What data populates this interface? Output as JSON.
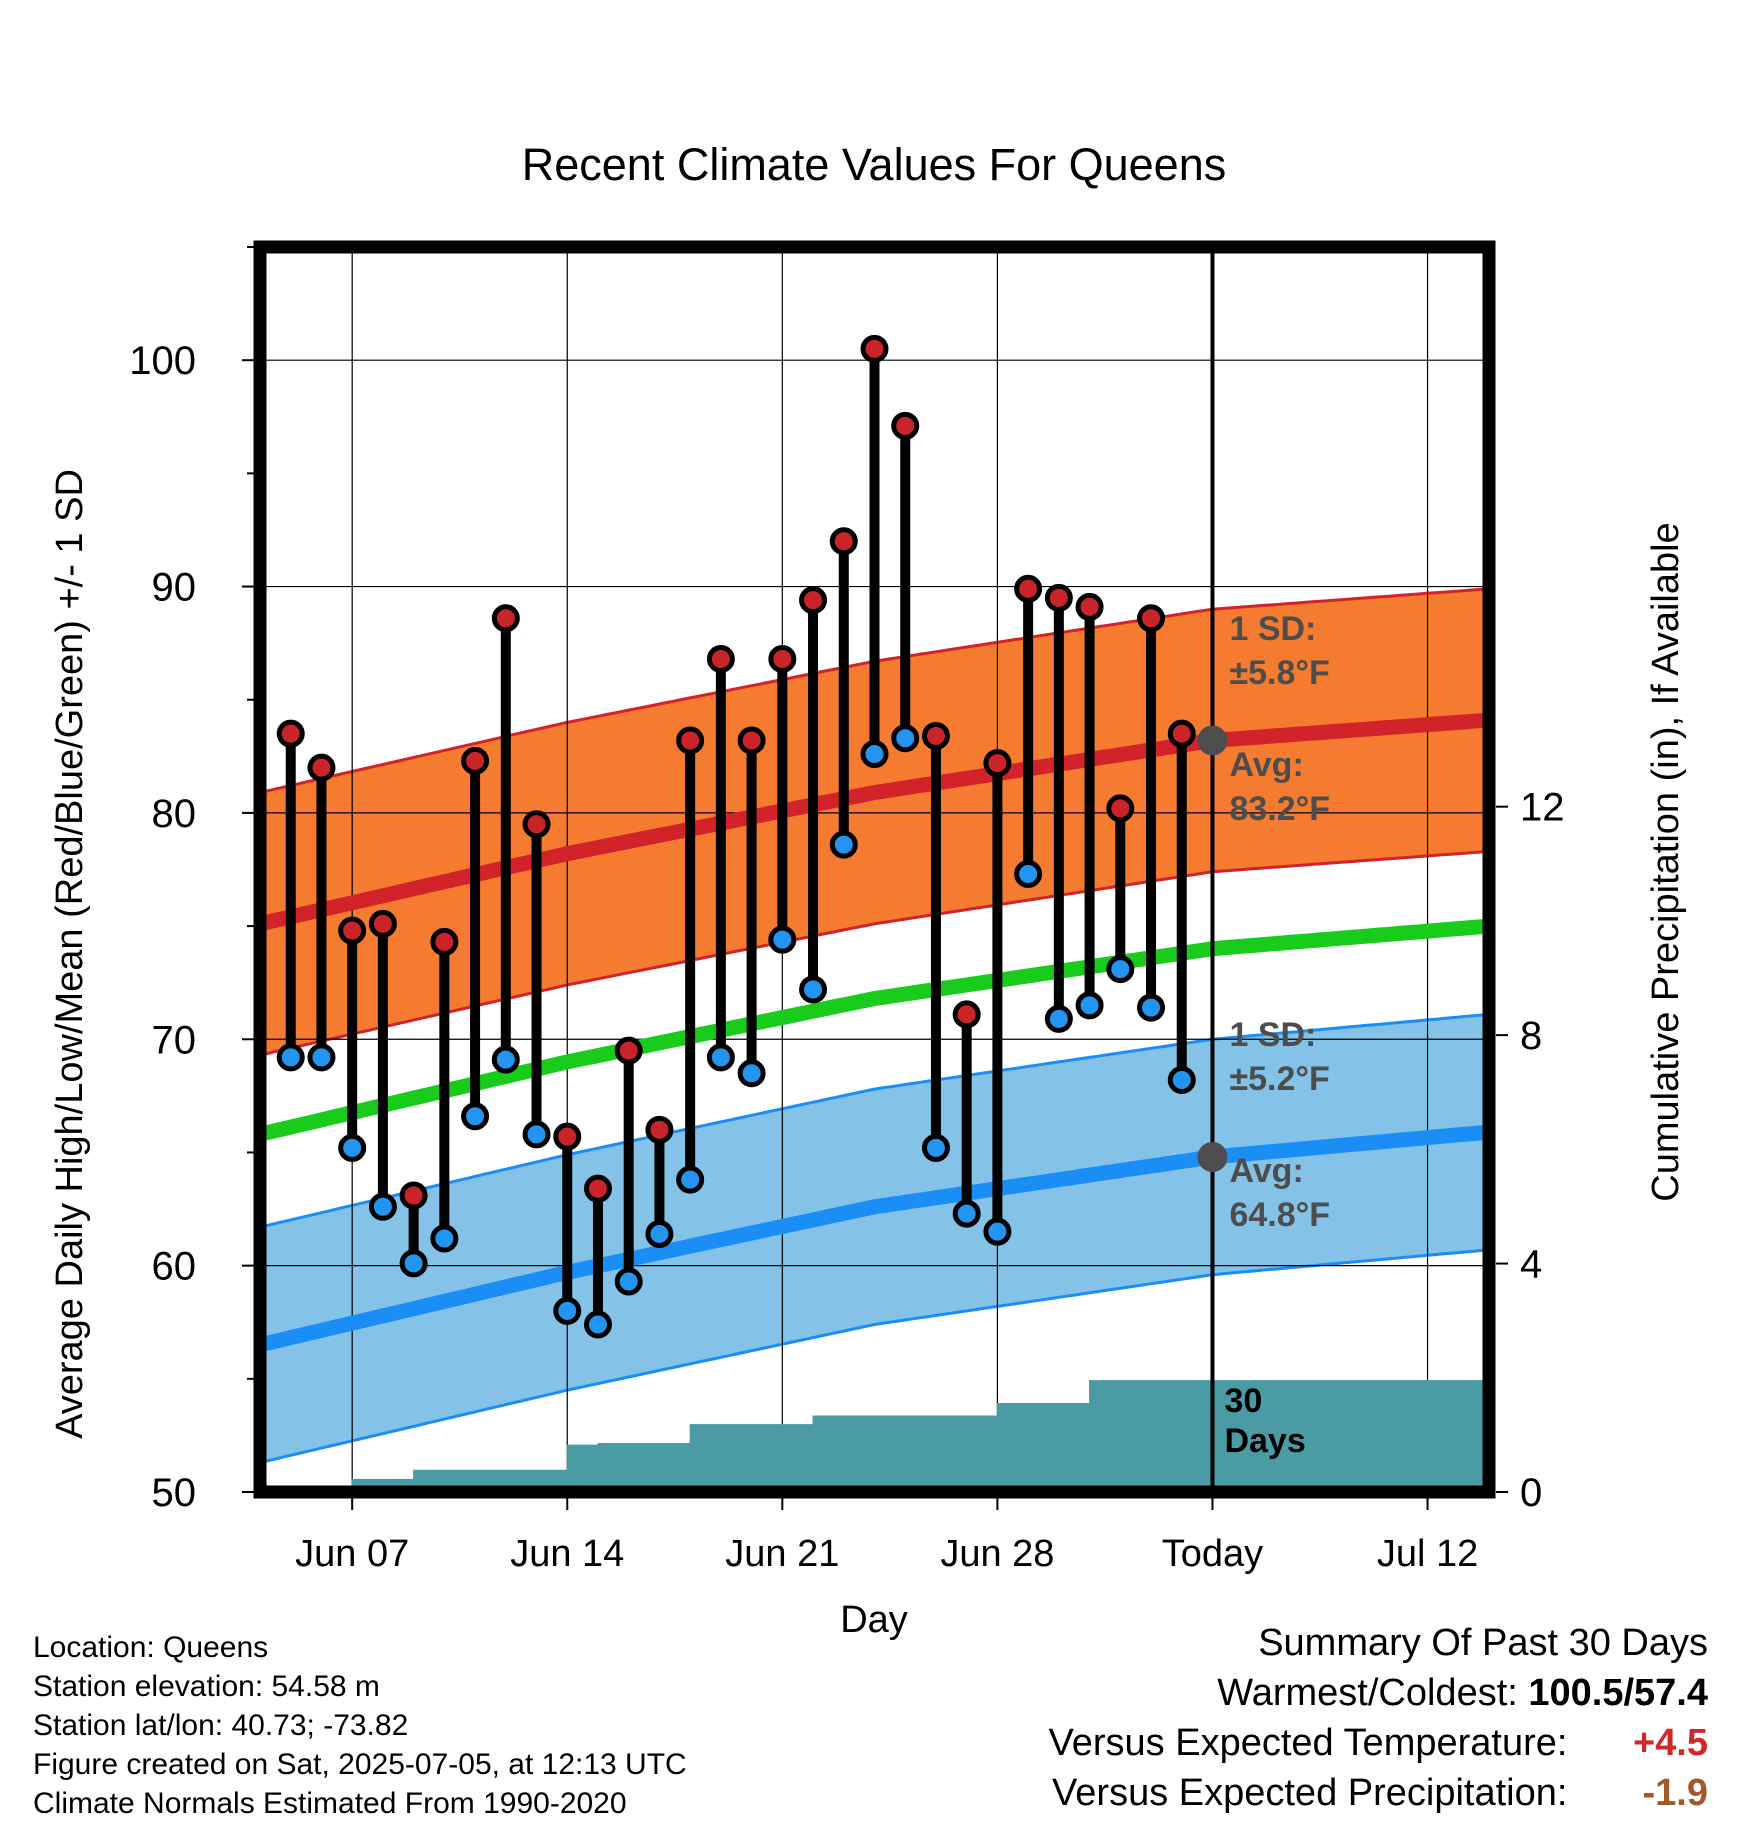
{
  "chart_data": {
    "type": "line",
    "title": "Recent Climate Values For Queens",
    "xlabel": "Day",
    "ylabel_left": "Average Daily High/Low/Mean (Red/Blue/Green) +/- 1 SD",
    "ylabel_right": "Cumulative Precipitation (in), If Available",
    "ylim_left": [
      50,
      105
    ],
    "ylim_right": [
      0,
      21.8
    ],
    "x_start": "2025-06-04",
    "x_end": "2025-07-14",
    "xticks": [
      {
        "date": "2025-06-07",
        "label": "Jun 07"
      },
      {
        "date": "2025-06-14",
        "label": "Jun 14"
      },
      {
        "date": "2025-06-21",
        "label": "Jun 21"
      },
      {
        "date": "2025-06-28",
        "label": "Jun 28"
      },
      {
        "date": "2025-07-05",
        "label": "Today"
      },
      {
        "date": "2025-07-12",
        "label": "Jul 12"
      }
    ],
    "yticks_left": [
      50,
      60,
      70,
      80,
      90,
      100
    ],
    "yticks_right": [
      0,
      4,
      8,
      12
    ],
    "today": "2025-07-05",
    "normal_high": {
      "dates": [
        "2025-06-04",
        "2025-06-14",
        "2025-06-24",
        "2025-07-05",
        "2025-07-14"
      ],
      "avg": [
        75.1,
        78.2,
        80.9,
        83.2,
        84.1
      ],
      "sd": 5.8,
      "sd_label": "1 SD:",
      "sd_value_label": "±5.8°F",
      "avg_label": "Avg:",
      "avg_value_label": "83.2°F"
    },
    "normal_mean": {
      "dates": [
        "2025-06-04",
        "2025-06-14",
        "2025-06-24",
        "2025-07-05",
        "2025-07-14"
      ],
      "avg": [
        65.8,
        69.0,
        71.8,
        74.0,
        75.0
      ]
    },
    "normal_low": {
      "dates": [
        "2025-06-04",
        "2025-06-14",
        "2025-06-24",
        "2025-07-05",
        "2025-07-14"
      ],
      "avg": [
        56.5,
        59.7,
        62.6,
        64.8,
        65.9
      ],
      "sd": 5.2,
      "sd_label": "1 SD:",
      "sd_value_label": "±5.2°F",
      "avg_label": "Avg:",
      "avg_value_label": "64.8°F"
    },
    "daily": [
      {
        "date": "2025-06-05",
        "high": 83.5,
        "low": 69.2
      },
      {
        "date": "2025-06-06",
        "high": 82.0,
        "low": 69.2
      },
      {
        "date": "2025-06-07",
        "high": 74.8,
        "low": 65.2
      },
      {
        "date": "2025-06-08",
        "high": 75.1,
        "low": 62.6
      },
      {
        "date": "2025-06-09",
        "high": 63.1,
        "low": 60.1
      },
      {
        "date": "2025-06-10",
        "high": 74.3,
        "low": 61.2
      },
      {
        "date": "2025-06-11",
        "high": 82.3,
        "low": 66.6
      },
      {
        "date": "2025-06-12",
        "high": 88.6,
        "low": 69.1
      },
      {
        "date": "2025-06-13",
        "high": 79.5,
        "low": 65.8
      },
      {
        "date": "2025-06-14",
        "high": 65.7,
        "low": 58.0
      },
      {
        "date": "2025-06-15",
        "high": 63.4,
        "low": 57.4
      },
      {
        "date": "2025-06-16",
        "high": 69.5,
        "low": 59.3
      },
      {
        "date": "2025-06-17",
        "high": 66.0,
        "low": 61.4
      },
      {
        "date": "2025-06-18",
        "high": 83.2,
        "low": 63.8
      },
      {
        "date": "2025-06-19",
        "high": 86.8,
        "low": 69.2
      },
      {
        "date": "2025-06-20",
        "high": 83.2,
        "low": 68.5
      },
      {
        "date": "2025-06-21",
        "high": 86.8,
        "low": 74.4
      },
      {
        "date": "2025-06-22",
        "high": 89.4,
        "low": 72.2
      },
      {
        "date": "2025-06-23",
        "high": 92.0,
        "low": 78.6
      },
      {
        "date": "2025-06-24",
        "high": 100.5,
        "low": 82.6
      },
      {
        "date": "2025-06-25",
        "high": 97.1,
        "low": 83.3
      },
      {
        "date": "2025-06-26",
        "high": 83.4,
        "low": 65.2
      },
      {
        "date": "2025-06-27",
        "high": 71.1,
        "low": 62.3
      },
      {
        "date": "2025-06-28",
        "high": 82.2,
        "low": 61.5
      },
      {
        "date": "2025-06-29",
        "high": 89.9,
        "low": 77.3
      },
      {
        "date": "2025-06-30",
        "high": 89.5,
        "low": 70.9
      },
      {
        "date": "2025-07-01",
        "high": 89.1,
        "low": 71.5
      },
      {
        "date": "2025-07-02",
        "high": 80.2,
        "low": 73.1
      },
      {
        "date": "2025-07-03",
        "high": 88.6,
        "low": 71.4
      },
      {
        "date": "2025-07-04",
        "high": 83.5,
        "low": 68.2
      }
    ],
    "precipitation": {
      "steps": [
        {
          "date": "2025-06-04",
          "value": 0.0
        },
        {
          "date": "2025-06-07",
          "value": 0.22
        },
        {
          "date": "2025-06-09",
          "value": 0.38
        },
        {
          "date": "2025-06-14",
          "value": 0.82
        },
        {
          "date": "2025-06-15",
          "value": 0.85
        },
        {
          "date": "2025-06-18",
          "value": 1.18
        },
        {
          "date": "2025-06-22",
          "value": 1.33
        },
        {
          "date": "2025-06-28",
          "value": 1.55
        },
        {
          "date": "2025-07-01",
          "value": 1.95
        },
        {
          "date": "2025-07-14",
          "value": 1.95
        }
      ],
      "label_line1": "30",
      "label_line2": "Days"
    },
    "grid": true
  },
  "info": {
    "location": "Location: Queens",
    "elevation": "Station elevation: 54.58 m",
    "latlon": "Station lat/lon: 40.73; -73.82",
    "created": "Figure created on Sat, 2025-07-05, at 12:13 UTC",
    "normals": "Climate Normals Estimated From 1990-2020"
  },
  "summary": {
    "title": "Summary Of Past 30 Days",
    "warm_label": "Warmest/Coldest:",
    "warm_value": "100.5/57.4",
    "temp_label": "Versus Expected Temperature:",
    "temp_value": "+4.5",
    "precip_label": "Versus Expected Precipitation:",
    "precip_value": "-1.9"
  },
  "colors": {
    "high_band": "#f47b2f",
    "high_line": "#d2232a",
    "mean_line": "#19cc1c",
    "low_band": "#84c2e8",
    "low_line": "#1b8ef5",
    "precip_fill": "#4a9ba4",
    "high_marker": "#c8242a",
    "low_marker": "#2395f0",
    "annot_text": "#4d4d4d",
    "temp_delta": "#d02826",
    "precip_delta": "#a05a2c"
  }
}
